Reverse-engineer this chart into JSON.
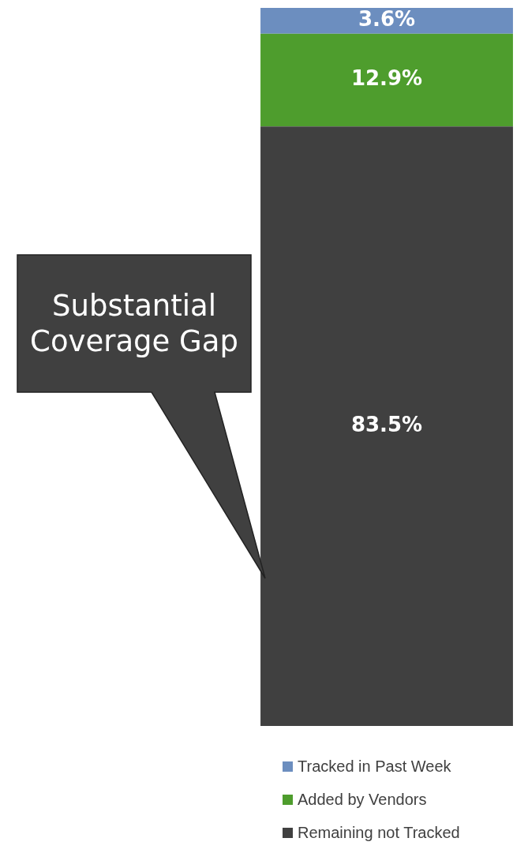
{
  "chart_data": {
    "type": "bar",
    "stacked": true,
    "categories": [
      null
    ],
    "series": [
      {
        "name": "Remaining not Tracked",
        "color": "#404040",
        "values": [
          83.5
        ],
        "value_labels": [
          "83.5%"
        ]
      },
      {
        "name": "Added by Vendors",
        "color": "#4e9d2d",
        "values": [
          12.9
        ],
        "value_labels": [
          "12.9%"
        ]
      },
      {
        "name": "Tracked in Past Week",
        "color": "#6c8ebf",
        "values": [
          3.6
        ],
        "value_labels": [
          "3.6%"
        ]
      }
    ],
    "tick_labels": false,
    "legend": "bottom",
    "annotations": [
      "Substantial Coverage Gap"
    ]
  }
}
